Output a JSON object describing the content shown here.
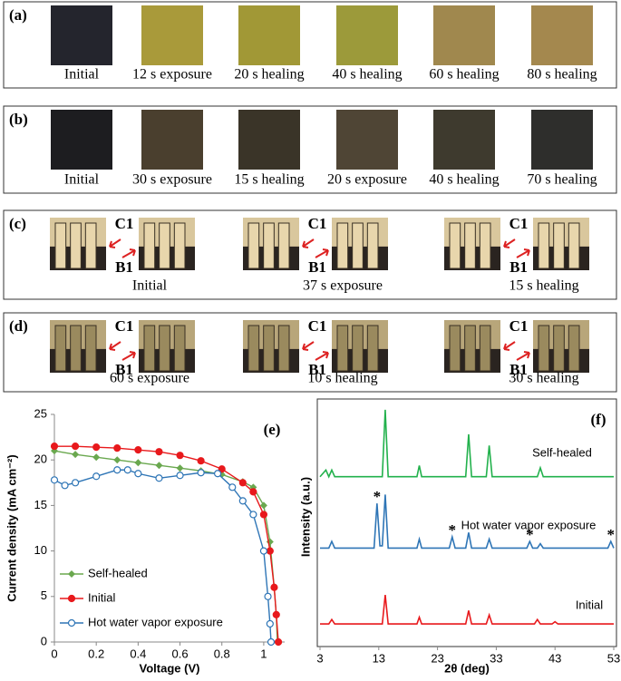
{
  "panels": [
    {
      "label": "(a)",
      "captions": [
        "Initial",
        "12 s exposure",
        "20 s healing",
        "40 s healing",
        "60 s healing",
        "80 s healing"
      ]
    },
    {
      "label": "(b)",
      "captions": [
        "Initial",
        "30 s exposure",
        "15 s healing",
        "20 s exposure",
        "40 s healing",
        "70 s healing"
      ]
    },
    {
      "label": "(c)",
      "device_labels": [
        "C1",
        "B1"
      ],
      "captions": [
        "Initial",
        "37 s exposure",
        "15 s healing"
      ]
    },
    {
      "label": "(d)",
      "device_labels": [
        "C1",
        "B1"
      ],
      "captions": [
        "60 s exposure",
        "10 s healing",
        "30 s healing"
      ]
    }
  ],
  "chart_data": [
    {
      "type": "line",
      "label": "(e)",
      "x_label": "Voltage (V)",
      "y_label": "Current density (mA cm⁻²)",
      "xlim": [
        0,
        1.1
      ],
      "xticks": [
        0,
        0.2,
        0.4,
        0.6,
        0.8,
        1
      ],
      "ylim": [
        0,
        25
      ],
      "yticks": [
        0,
        5,
        10,
        15,
        20,
        25
      ],
      "legend": "lower left",
      "series": [
        {
          "name": "Self-healed",
          "color": "#6aa84f",
          "marker": "diamond",
          "x": [
            0,
            0.1,
            0.2,
            0.3,
            0.4,
            0.5,
            0.6,
            0.7,
            0.8,
            0.9,
            0.95,
            1.0,
            1.03,
            1.05,
            1.06,
            1.065
          ],
          "values": [
            21,
            20.6,
            20.3,
            20.0,
            19.7,
            19.4,
            19.1,
            18.8,
            18.4,
            17.6,
            17,
            15,
            11,
            6,
            3,
            0
          ]
        },
        {
          "name": "Initial",
          "color": "#e8191c",
          "marker": "circle",
          "x": [
            0,
            0.1,
            0.2,
            0.3,
            0.4,
            0.5,
            0.6,
            0.7,
            0.8,
            0.9,
            0.95,
            1.0,
            1.03,
            1.05,
            1.06,
            1.07
          ],
          "values": [
            21.5,
            21.5,
            21.4,
            21.3,
            21.1,
            20.9,
            20.5,
            19.9,
            19.0,
            17.5,
            16.5,
            14,
            10,
            6,
            3,
            0
          ]
        },
        {
          "name": "Hot water vapor exposure",
          "color": "#2e75b6",
          "marker": "open-circle",
          "x": [
            0,
            0.05,
            0.1,
            0.2,
            0.3,
            0.35,
            0.4,
            0.5,
            0.6,
            0.7,
            0.78,
            0.85,
            0.9,
            0.95,
            1.0,
            1.02,
            1.03,
            1.035
          ],
          "values": [
            17.8,
            17.2,
            17.5,
            18.2,
            18.9,
            18.9,
            18.5,
            18.0,
            18.3,
            18.6,
            18.5,
            17,
            15.5,
            14,
            10,
            5,
            2,
            0
          ]
        }
      ]
    },
    {
      "type": "line",
      "label": "(f)",
      "x_label": "2θ (deg)",
      "y_label": "Intensity (a.u.)",
      "xlim": [
        3,
        53
      ],
      "xticks": [
        3,
        13,
        23,
        33,
        43,
        53
      ],
      "ylim": [
        0,
        100
      ],
      "asterisk": "*",
      "marked_peaks": [
        12.7,
        25.5,
        38.7,
        52.5
      ],
      "series": [
        {
          "name": "Initial",
          "color": "#e8191c",
          "x": [
            3,
            4.5,
            5,
            5.5,
            13.6,
            14.1,
            14.6,
            19.5,
            19.9,
            20.3,
            27.8,
            28.3,
            28.8,
            31.3,
            31.8,
            32.3,
            39.5,
            40,
            40.5,
            42.5,
            43,
            43.5,
            53
          ],
          "values": [
            2,
            2,
            4,
            2,
            2,
            15,
            2,
            2,
            5,
            2,
            2,
            8,
            2,
            2,
            6,
            2,
            2,
            4,
            2,
            2,
            3,
            2,
            2
          ]
        },
        {
          "name": "Hot water vapor exposure",
          "color": "#2e75b6",
          "x": [
            3,
            4.5,
            5,
            5.5,
            12.2,
            12.7,
            13.2,
            13.6,
            14.1,
            14.6,
            19.5,
            19.9,
            20.3,
            25,
            25.5,
            26,
            27.8,
            28.3,
            28.8,
            31.3,
            31.8,
            32.3,
            38.2,
            38.7,
            39.2,
            40,
            40.5,
            41,
            52,
            52.5,
            53
          ],
          "values": [
            36,
            36,
            39,
            36,
            36,
            56,
            37,
            37,
            60,
            36,
            36,
            40,
            36,
            36,
            41,
            36,
            36,
            43,
            36,
            36,
            40,
            36,
            36,
            39,
            36,
            36,
            38,
            36,
            36,
            39,
            36
          ]
        },
        {
          "name": "Self-healed",
          "color": "#22b14c",
          "x": [
            3,
            4,
            4.5,
            5,
            5.5,
            13.6,
            14.1,
            14.6,
            19.5,
            19.9,
            20.3,
            27.8,
            28.3,
            28.8,
            31.3,
            31.8,
            32.3,
            40,
            40.5,
            41,
            53
          ],
          "values": [
            68,
            71,
            68,
            71,
            68,
            68,
            98,
            68,
            68,
            73,
            68,
            68,
            87,
            68,
            68,
            82,
            68,
            68,
            72,
            68,
            68
          ]
        }
      ]
    }
  ]
}
